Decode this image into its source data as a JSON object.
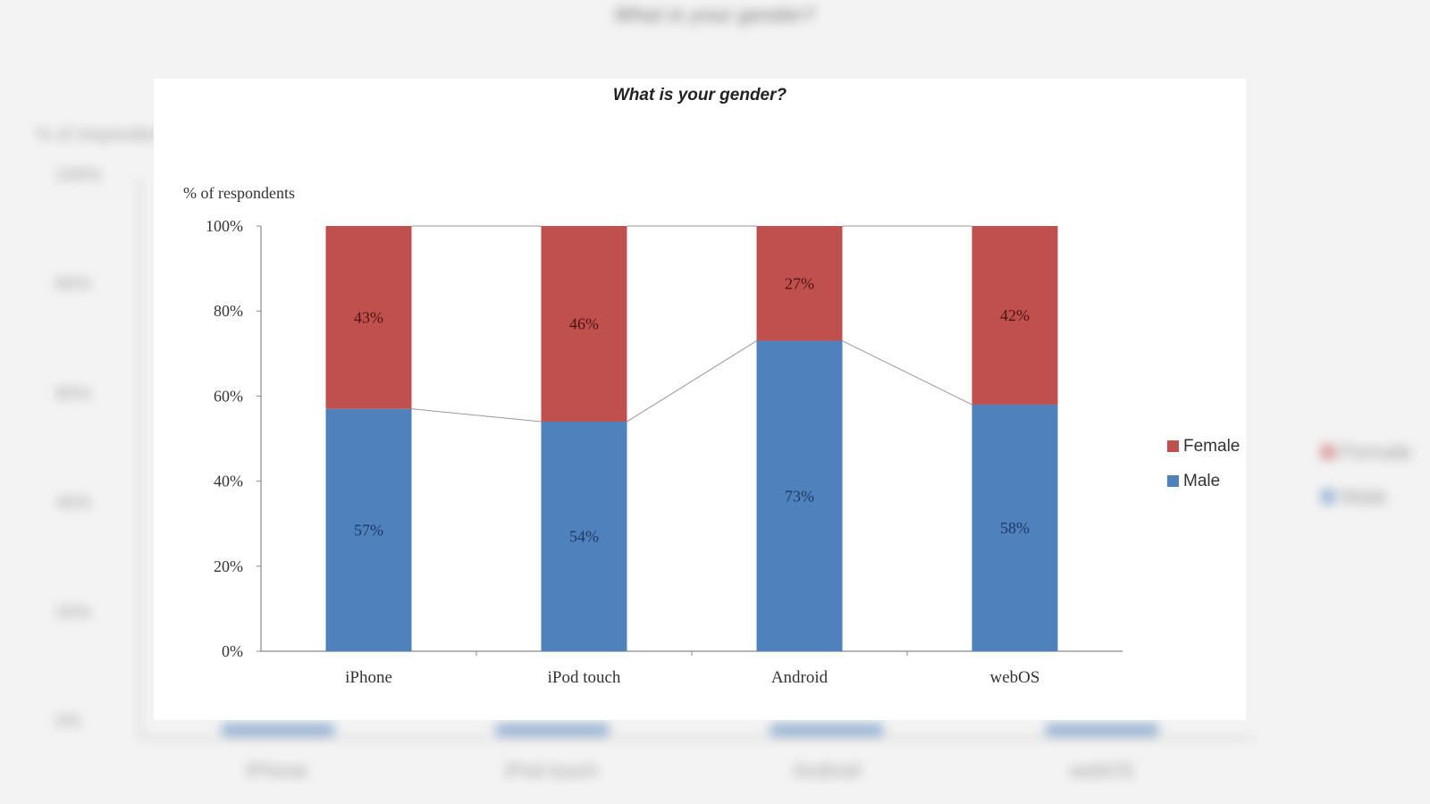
{
  "chart_data": {
    "type": "bar",
    "stacked": true,
    "title": "What is your gender?",
    "ylabel": "% of respondents",
    "xlabel": "",
    "ylim": [
      0,
      100
    ],
    "yticks": [
      "0%",
      "20%",
      "40%",
      "60%",
      "80%",
      "100%"
    ],
    "categories": [
      "iPhone",
      "iPod touch",
      "Android",
      "webOS"
    ],
    "series": [
      {
        "name": "Male",
        "values": [
          57,
          54,
          73,
          58
        ],
        "labels": [
          "57%",
          "54%",
          "73%",
          "58%"
        ],
        "color": "#4f81bd",
        "label_color": "#1f3864"
      },
      {
        "name": "Female",
        "values": [
          43,
          46,
          27,
          42
        ],
        "labels": [
          "43%",
          "46%",
          "27%",
          "42%"
        ],
        "color": "#c0504d",
        "label_color": "#4a1414"
      }
    ],
    "series_lines": true,
    "grid": false,
    "legend_position": "right"
  }
}
